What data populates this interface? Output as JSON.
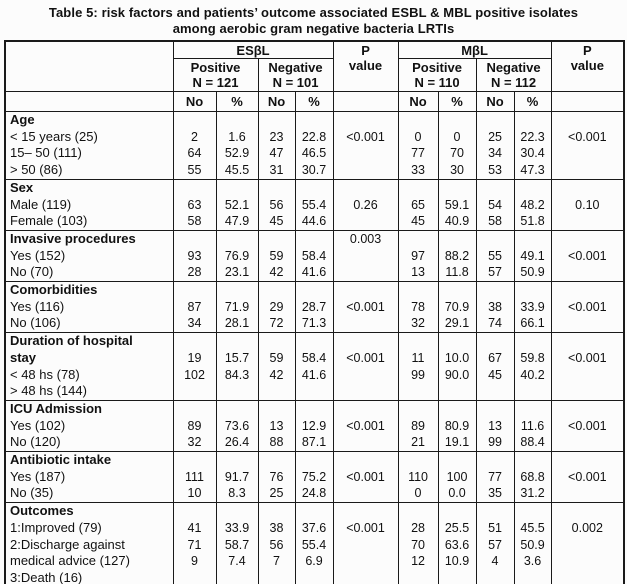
{
  "title": {
    "line1": "Table 5:  risk factors and patients’ outcome associated ESBL & MBL positive isolates",
    "line2": "among aerobic gram negative bacteria LRTIs"
  },
  "header": {
    "esbl": "ESβL",
    "mbl": "MβL",
    "p": "P\nvalue",
    "groups": [
      {
        "name": "Positive",
        "n": "N = 121"
      },
      {
        "name": "Negative",
        "n": "N = 101"
      },
      {
        "name": "Positive",
        "n": "N = 110"
      },
      {
        "name": "Negative",
        "n": "N = 112"
      }
    ],
    "no": "No",
    "pct": "%"
  },
  "sections": [
    {
      "name": "age",
      "rows": [
        {
          "label": "Age",
          "bold": true,
          "cells": [
            "",
            "",
            "",
            "",
            "",
            "",
            "",
            "",
            "",
            ""
          ]
        },
        {
          "label": "< 15 years (25)",
          "bold": false,
          "cells": [
            "2",
            "1.6",
            "23",
            "22.8",
            "<0.001",
            "0",
            "0",
            "25",
            "22.3",
            "<0.001"
          ]
        },
        {
          "label": "15– 50 (111)",
          "bold": false,
          "cells": [
            "64",
            "52.9",
            "47",
            "46.5",
            "",
            "77",
            "70",
            "34",
            "30.4",
            ""
          ]
        },
        {
          "label": "> 50 (86)",
          "bold": false,
          "cells": [
            "55",
            "45.5",
            "31",
            "30.7",
            "",
            "33",
            "30",
            "53",
            "47.3",
            ""
          ]
        }
      ]
    },
    {
      "name": "sex",
      "rows": [
        {
          "label": "Sex",
          "bold": true,
          "cells": [
            "",
            "",
            "",
            "",
            "",
            "",
            "",
            "",
            "",
            ""
          ]
        },
        {
          "label": "Male (119)",
          "bold": false,
          "cells": [
            "63",
            "52.1",
            "56",
            "55.4",
            "0.26",
            "65",
            "59.1",
            "54",
            "48.2",
            "0.10"
          ]
        },
        {
          "label": "Female (103)",
          "bold": false,
          "cells": [
            "58",
            "47.9",
            "45",
            "44.6",
            "",
            "45",
            "40.9",
            "58",
            "51.8",
            ""
          ]
        }
      ]
    },
    {
      "name": "invasive-procedures",
      "rows": [
        {
          "label": "Invasive procedures",
          "bold": true,
          "cells": [
            "",
            "",
            "",
            "",
            "0.003",
            "",
            "",
            "",
            "",
            ""
          ]
        },
        {
          "label": "Yes (152)",
          "bold": false,
          "cells": [
            "93",
            "76.9",
            "59",
            "58.4",
            "",
            "97",
            "88.2",
            "55",
            "49.1",
            "<0.001"
          ]
        },
        {
          "label": "No (70)",
          "bold": false,
          "cells": [
            "28",
            "23.1",
            "42",
            "41.6",
            "",
            "13",
            "11.8",
            "57",
            "50.9",
            ""
          ]
        }
      ]
    },
    {
      "name": "comorbidities",
      "rows": [
        {
          "label": "Comorbidities",
          "bold": true,
          "cells": [
            "",
            "",
            "",
            "",
            "",
            "",
            "",
            "",
            "",
            ""
          ]
        },
        {
          "label": "Yes (116)",
          "bold": false,
          "cells": [
            "87",
            "71.9",
            "29",
            "28.7",
            "<0.001",
            "78",
            "70.9",
            "38",
            "33.9",
            "<0.001"
          ]
        },
        {
          "label": "No  (106)",
          "bold": false,
          "cells": [
            "34",
            "28.1",
            "72",
            "71.3",
            "",
            "32",
            "29.1",
            "74",
            "66.1",
            ""
          ]
        }
      ]
    },
    {
      "name": "duration-of-hospital-stay",
      "rows": [
        {
          "label": "Duration of hospital",
          "bold": true,
          "cells": [
            "",
            "",
            "",
            "",
            "",
            "",
            "",
            "",
            "",
            ""
          ]
        },
        {
          "label": "stay",
          "bold": true,
          "cells": [
            "19",
            "15.7",
            "59",
            "58.4",
            "<0.001",
            "11",
            "10.0",
            "67",
            "59.8",
            "<0.001"
          ]
        },
        {
          "label": "<  48 hs (78)",
          "bold": false,
          "cells": [
            "102",
            "84.3",
            "42",
            "41.6",
            "",
            "99",
            "90.0",
            "45",
            "40.2",
            ""
          ]
        },
        {
          "label": "> 48 hs (144)",
          "bold": false,
          "cells": [
            "",
            "",
            "",
            "",
            "",
            "",
            "",
            "",
            "",
            ""
          ]
        }
      ]
    },
    {
      "name": "icu-admission",
      "rows": [
        {
          "label": "ICU Admission",
          "bold": true,
          "cells": [
            "",
            "",
            "",
            "",
            "",
            "",
            "",
            "",
            "",
            ""
          ]
        },
        {
          "label": "Yes (102)",
          "bold": false,
          "cells": [
            "89",
            "73.6",
            "13",
            "12.9",
            "<0.001",
            "89",
            "80.9",
            "13",
            "11.6",
            "<0.001"
          ]
        },
        {
          "label": "No  (120)",
          "bold": false,
          "cells": [
            "32",
            "26.4",
            "88",
            "87.1",
            "",
            "21",
            "19.1",
            "99",
            "88.4",
            ""
          ]
        }
      ]
    },
    {
      "name": "antibiotic-intake",
      "rows": [
        {
          "label": "Antibiotic intake",
          "bold": true,
          "cells": [
            "",
            "",
            "",
            "",
            "",
            "",
            "",
            "",
            "",
            ""
          ]
        },
        {
          "label": "Yes (187)",
          "bold": false,
          "cells": [
            "111",
            "91.7",
            "76",
            "75.2",
            "<0.001",
            "110",
            "100",
            "77",
            "68.8",
            "<0.001"
          ]
        },
        {
          "label": "No (35)",
          "bold": false,
          "cells": [
            "10",
            "8.3",
            "25",
            "24.8",
            "",
            "0",
            "0.0",
            "35",
            "31.2",
            ""
          ]
        }
      ]
    },
    {
      "name": "outcomes",
      "rows": [
        {
          "label": "Outcomes",
          "bold": true,
          "cells": [
            "",
            "",
            "",
            "",
            "",
            "",
            "",
            "",
            "",
            ""
          ]
        },
        {
          "label": "1:Improved (79)",
          "bold": false,
          "cells": [
            "41",
            "33.9",
            "38",
            "37.6",
            "<0.001",
            "28",
            "25.5",
            "51",
            "45.5",
            "0.002"
          ]
        },
        {
          "label": "2:Discharge against",
          "bold": false,
          "cells": [
            "71",
            "58.7",
            "56",
            "55.4",
            "",
            "70",
            "63.6",
            "57",
            "50.9",
            ""
          ]
        },
        {
          "label": "medical advice (127)",
          "bold": false,
          "cells": [
            "9",
            "7.4",
            "7",
            "6.9",
            "",
            "12",
            "10.9",
            "4",
            "3.6",
            ""
          ]
        },
        {
          "label": "3:Death  (16)",
          "bold": false,
          "cells": [
            "",
            "",
            "",
            "",
            "",
            "",
            "",
            "",
            "",
            ""
          ]
        }
      ]
    }
  ]
}
